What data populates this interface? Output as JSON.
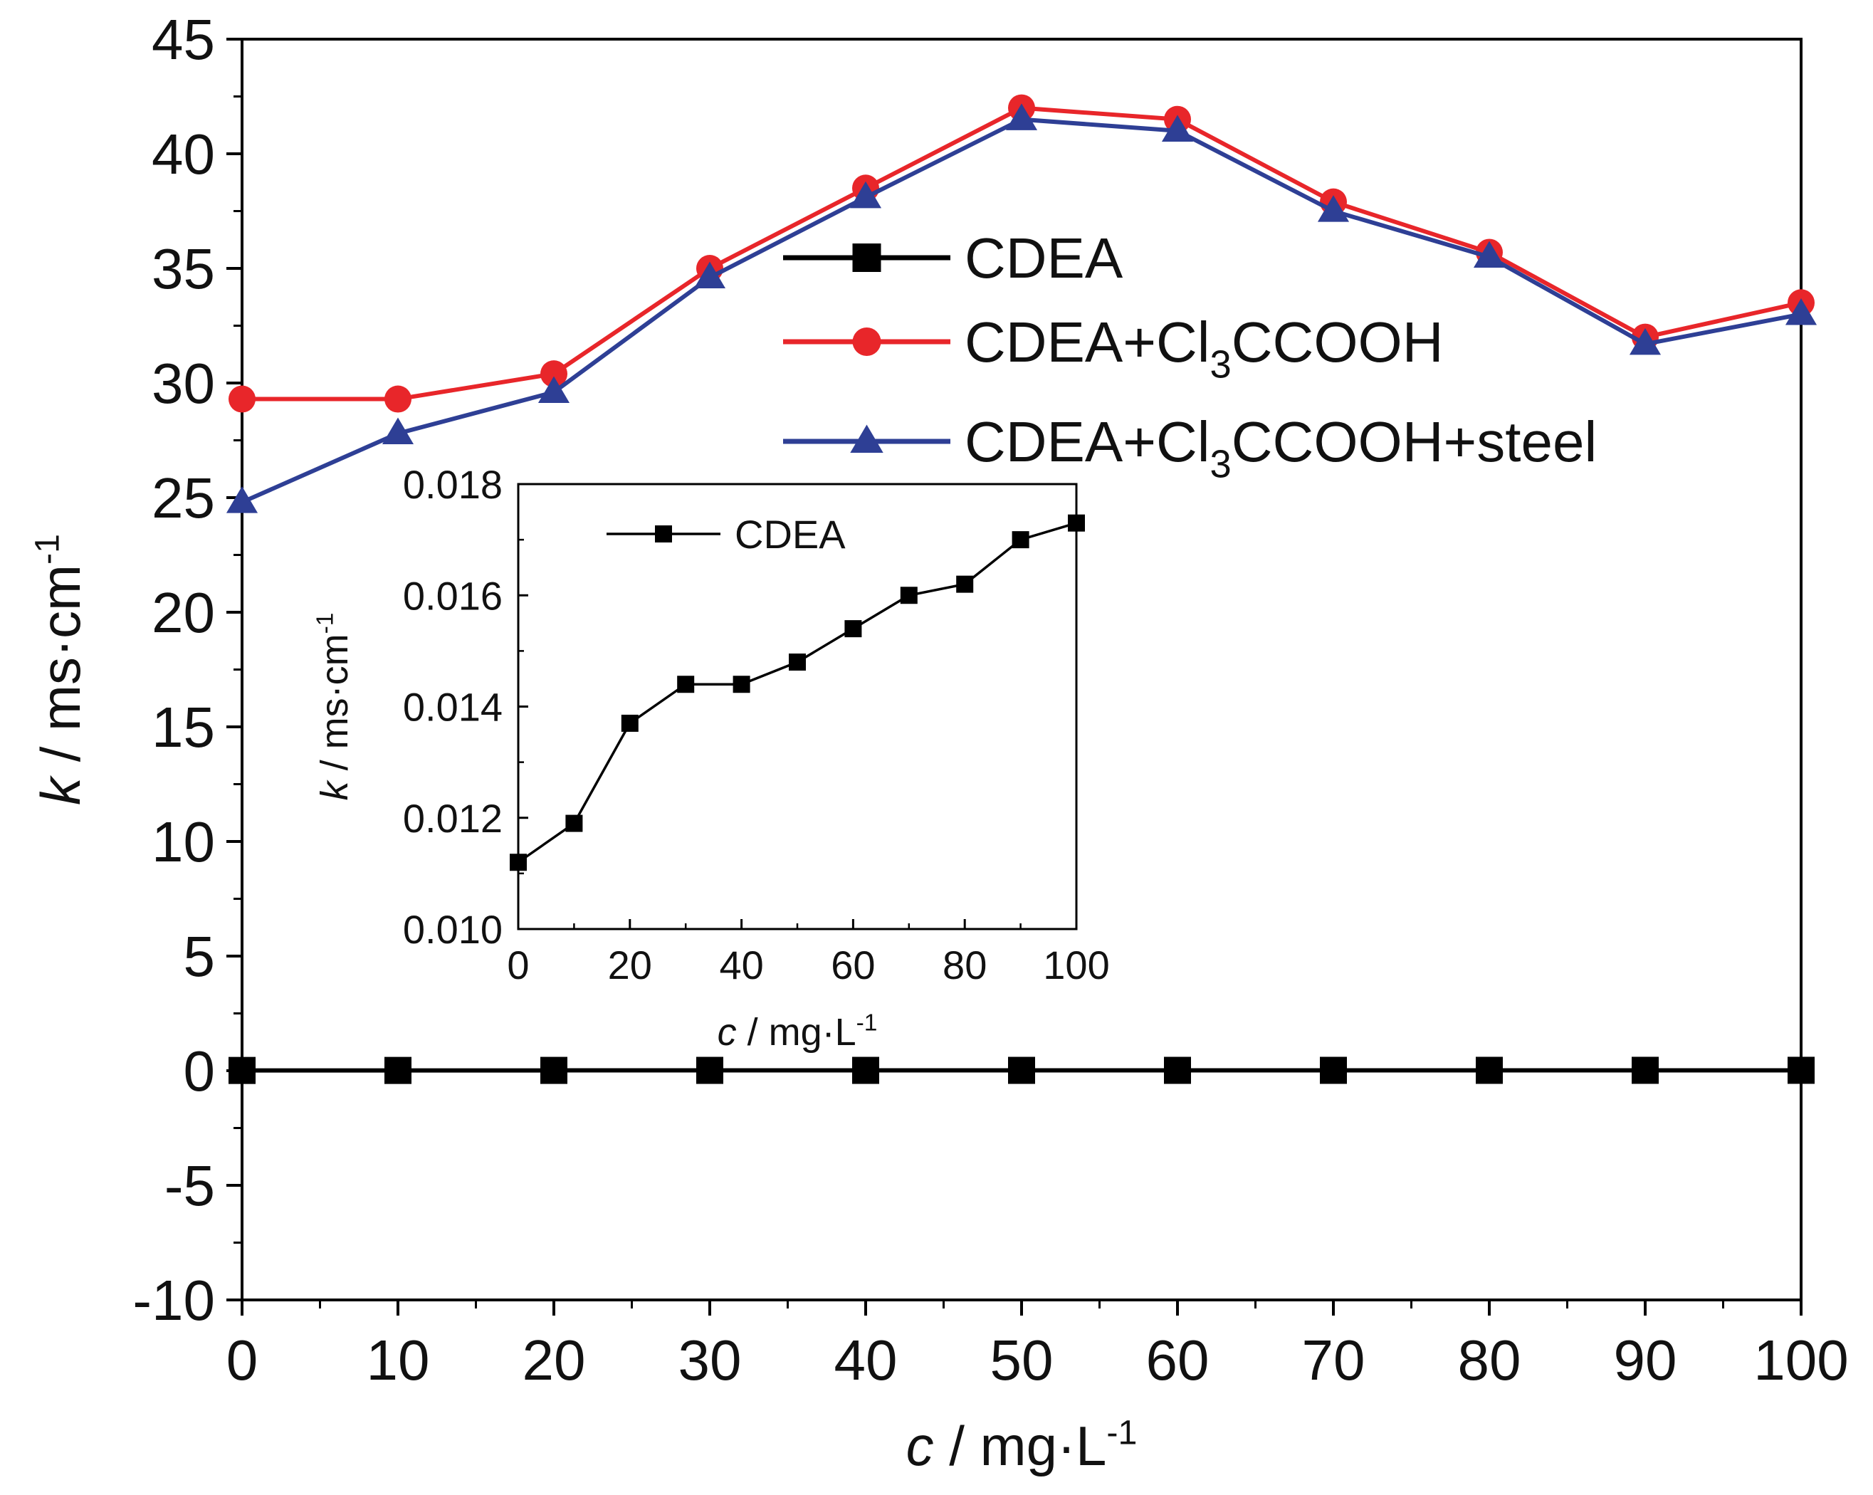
{
  "chart_data": [
    {
      "type": "line",
      "x": [
        0,
        10,
        20,
        30,
        40,
        50,
        60,
        70,
        80,
        90,
        100
      ],
      "xlim": [
        0,
        100
      ],
      "ylim": [
        -10,
        45
      ],
      "xticks": [
        0,
        10,
        20,
        30,
        40,
        50,
        60,
        70,
        80,
        90,
        100
      ],
      "yticks": [
        -10,
        -5,
        0,
        5,
        10,
        15,
        20,
        25,
        30,
        35,
        40,
        45
      ],
      "xlabel": {
        "var": "c",
        "unit": " / mg·L",
        "sup": "-1"
      },
      "ylabel": {
        "var": "k",
        "unit": " / ms·cm",
        "sup": "-1"
      },
      "grid": false,
      "legend_position": "top-right",
      "series": [
        {
          "name": "CDEA",
          "legend": {
            "base": "CDEA",
            "sub": "",
            "tail": ""
          },
          "color": "#000000",
          "marker": "square",
          "values": [
            0.0112,
            0.0119,
            0.0137,
            0.0144,
            0.0144,
            0.0148,
            0.0154,
            0.016,
            0.0162,
            0.017,
            0.0173
          ]
        },
        {
          "name": "CDEA+Cl3CCOOH",
          "legend": {
            "base": "CDEA+Cl",
            "sub": "3",
            "tail": "CCOOH"
          },
          "color": "#e8262a",
          "marker": "circle",
          "values": [
            29.3,
            29.3,
            30.4,
            35.0,
            38.5,
            42.0,
            41.5,
            37.9,
            35.7,
            32.0,
            33.5
          ]
        },
        {
          "name": "CDEA+Cl3CCOOH+steel",
          "legend": {
            "base": "CDEA+Cl",
            "sub": "3",
            "tail": "CCOOH+steel"
          },
          "color": "#2e3f95",
          "marker": "triangle",
          "values": [
            24.8,
            27.8,
            29.6,
            34.6,
            38.1,
            41.5,
            41.0,
            37.5,
            35.5,
            31.7,
            33.0
          ]
        }
      ]
    },
    {
      "type": "line",
      "inset": true,
      "x": [
        0,
        10,
        20,
        30,
        40,
        50,
        60,
        70,
        80,
        90,
        100
      ],
      "xlim": [
        0,
        100
      ],
      "ylim": [
        0.01,
        0.018
      ],
      "xticks": [
        0,
        20,
        40,
        60,
        80,
        100
      ],
      "yticks": [
        "0.010",
        "0.012",
        "0.014",
        "0.016",
        "0.018"
      ],
      "xlabel": {
        "var": "c",
        "unit": " / mg·L",
        "sup": "-1"
      },
      "ylabel": {
        "var": "k",
        "unit": " / ms·cm",
        "sup": "-1"
      },
      "grid": false,
      "legend_position": "top-left",
      "series": [
        {
          "name": "CDEA",
          "color": "#000000",
          "marker": "square",
          "values": [
            0.0112,
            0.0119,
            0.0137,
            0.0144,
            0.0144,
            0.0148,
            0.0154,
            0.016,
            0.0162,
            0.017,
            0.0173
          ]
        }
      ]
    }
  ]
}
